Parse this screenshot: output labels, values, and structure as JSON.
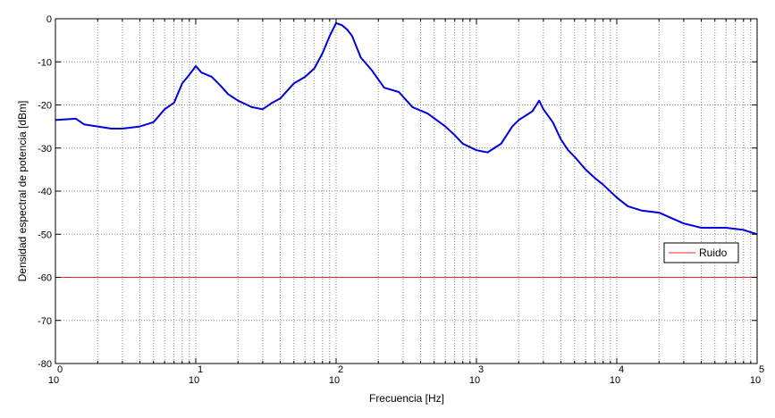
{
  "chart_data": {
    "type": "line",
    "title": "",
    "xlabel": "Frecuencia [Hz]",
    "ylabel": "Densidad espectral de potencia [dBm]",
    "xscale": "log",
    "xlim": [
      1,
      100000
    ],
    "ylim": [
      -80,
      0
    ],
    "grid": true,
    "legend_position": "right",
    "x_ticks": [
      {
        "base": "10",
        "exp": "0"
      },
      {
        "base": "10",
        "exp": "1"
      },
      {
        "base": "10",
        "exp": "2"
      },
      {
        "base": "10",
        "exp": "3"
      },
      {
        "base": "10",
        "exp": "4"
      },
      {
        "base": "10",
        "exp": "5"
      }
    ],
    "y_ticks": [
      "0",
      "-10",
      "-20",
      "-30",
      "-40",
      "-50",
      "-60",
      "-70",
      "-80"
    ],
    "y_tick_values": [
      0,
      -10,
      -20,
      -30,
      -40,
      -50,
      -60,
      -70,
      -80
    ],
    "series": [
      {
        "name": "",
        "color": "#0000dd",
        "x": [
          1,
          1.4,
          1.6,
          2,
          2.5,
          3,
          4,
          5,
          6,
          7,
          8,
          9,
          10,
          11,
          12,
          13,
          15,
          17,
          20,
          25,
          30,
          35,
          40,
          50,
          60,
          70,
          80,
          90,
          100,
          110,
          120,
          130,
          150,
          180,
          220,
          280,
          350,
          450,
          600,
          700,
          800,
          1000,
          1200,
          1500,
          1800,
          2000,
          2500,
          2800,
          3000,
          3500,
          4000,
          4500,
          5000,
          6000,
          7000,
          8000,
          10000,
          12000,
          15000,
          20000,
          30000,
          40000,
          60000,
          80000,
          100000
        ],
        "y": [
          -23.5,
          -23.2,
          -24.5,
          -25,
          -25.5,
          -25.5,
          -25,
          -24,
          -21,
          -19.5,
          -15,
          -13,
          -11,
          -12.5,
          -13,
          -13.5,
          -15.5,
          -17.5,
          -19,
          -20.5,
          -21,
          -19.5,
          -18.5,
          -15,
          -13.5,
          -11.5,
          -8,
          -4,
          -1,
          -1.5,
          -2.5,
          -4,
          -9,
          -12,
          -16,
          -17,
          -20.5,
          -22,
          -25,
          -27,
          -29,
          -30.5,
          -31,
          -29,
          -25,
          -23.5,
          -21.5,
          -19,
          -21,
          -24,
          -28,
          -30.5,
          -32,
          -35,
          -37,
          -38.5,
          -41.5,
          -43.5,
          -44.5,
          -45,
          -47.5,
          -48.5,
          -48.5,
          -49,
          -50
        ]
      },
      {
        "name": "Ruido",
        "color": "#ff2020",
        "x": [
          1,
          100000
        ],
        "y": [
          -60,
          -60
        ]
      }
    ]
  }
}
